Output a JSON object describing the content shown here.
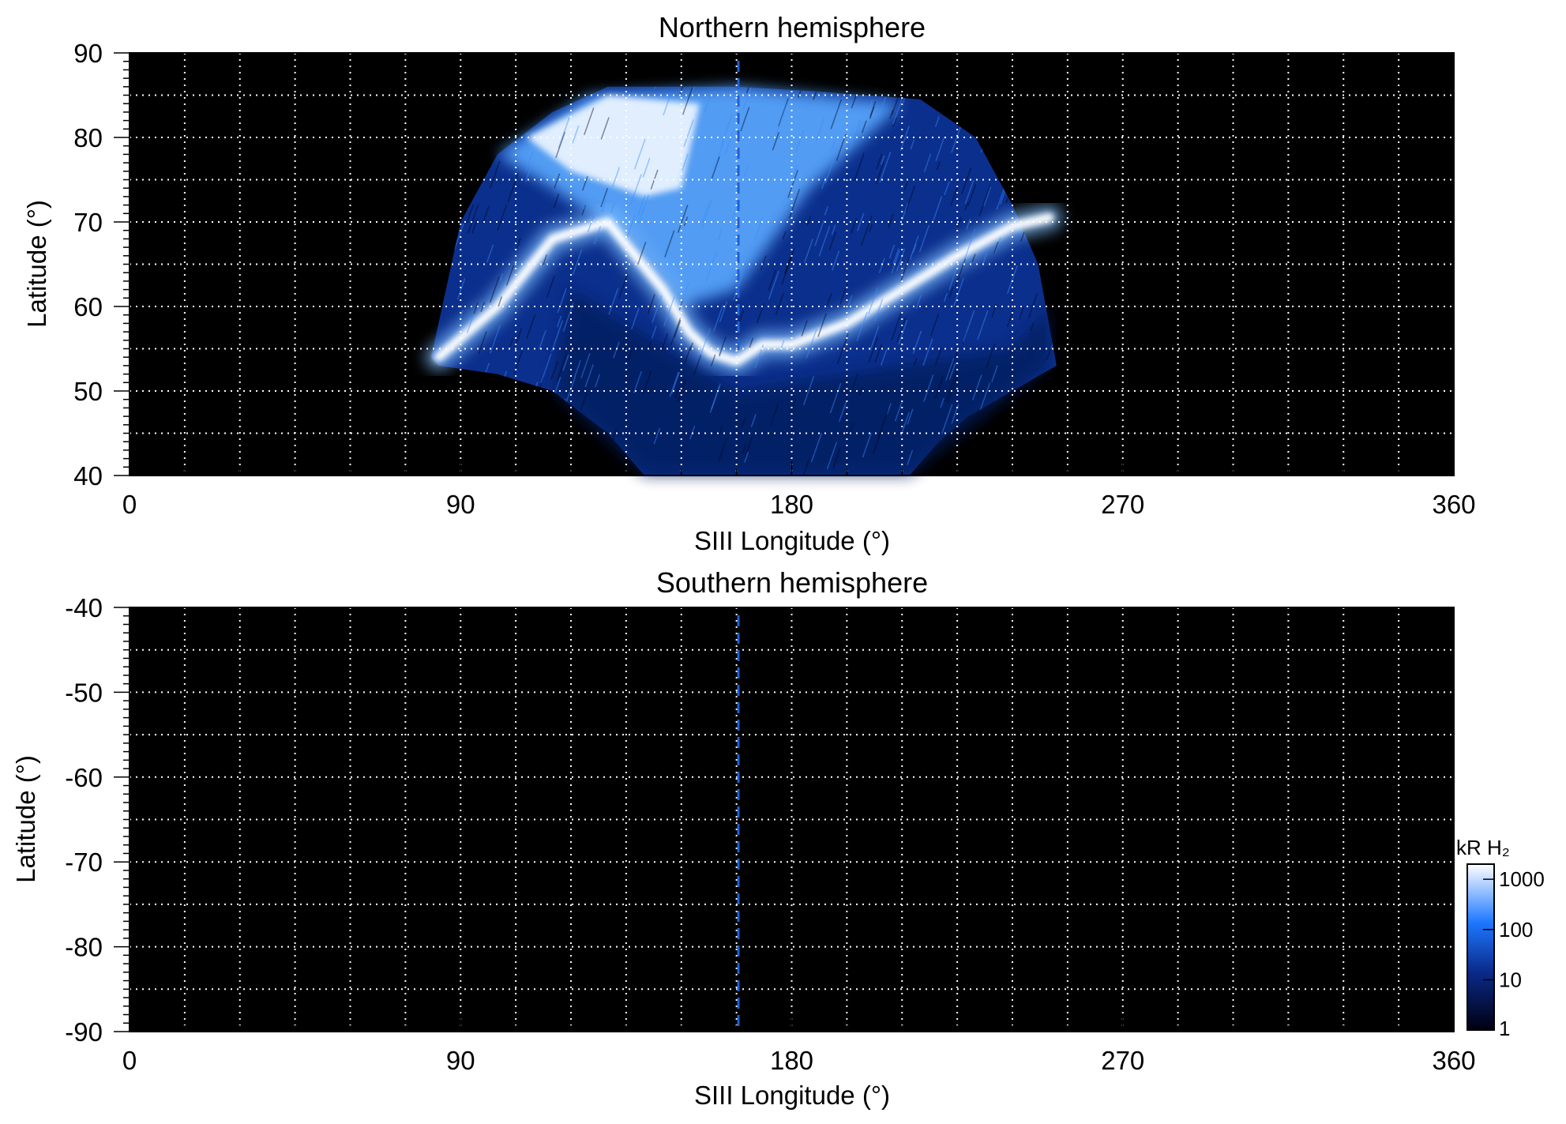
{
  "panels": [
    {
      "title": "Northern hemisphere",
      "xlabel": "SIII Longitude (°)",
      "ylabel": "Latitude (°)",
      "xlim": [
        0,
        360
      ],
      "ylim": [
        40,
        90
      ],
      "xticks": [
        "0",
        "90",
        "180",
        "270",
        "360"
      ],
      "yticks": [
        "90",
        "80",
        "70",
        "60",
        "50",
        "40"
      ]
    },
    {
      "title": "Southern hemisphere",
      "xlabel": "SIII Longitude (°)",
      "ylabel": "Latitude (°)",
      "xlim": [
        0,
        360
      ],
      "ylim": [
        -90,
        -40
      ],
      "xticks": [
        "0",
        "90",
        "180",
        "270",
        "360"
      ],
      "yticks": [
        "-40",
        "-50",
        "-60",
        "-70",
        "-80",
        "-90"
      ]
    }
  ],
  "colorbar": {
    "label": "kR H₂",
    "ticks": [
      "1000",
      "100",
      "10",
      "1"
    ],
    "scale": "log",
    "range": [
      1,
      2000
    ],
    "colors": [
      "#000010",
      "#0a2a8a",
      "#1e78ff",
      "#ffffff"
    ]
  },
  "chart_data": [
    {
      "type": "heatmap",
      "title": "Northern hemisphere",
      "xlabel": "SIII Longitude (°)",
      "ylabel": "Latitude (°)",
      "xlim": [
        0,
        360
      ],
      "ylim": [
        40,
        90
      ],
      "grid": true,
      "reference_longitude": 165,
      "main_oval": {
        "longitude": [
          84,
          100,
          115,
          130,
          145,
          152,
          158,
          165,
          172,
          180,
          195,
          210,
          225,
          240,
          250
        ],
        "latitude": [
          54,
          60,
          68,
          70,
          62,
          57,
          54.5,
          53.5,
          55.5,
          55.5,
          58,
          62,
          66,
          69.5,
          70.5
        ]
      },
      "coverage_edge": {
        "longitude": [
          82,
          90,
          100,
          115,
          130,
          145,
          165,
          185,
          200,
          215,
          230,
          240,
          247,
          252
        ],
        "latitude": [
          54,
          70,
          78,
          83,
          86,
          86,
          86,
          85.5,
          85,
          84.5,
          80,
          72,
          65,
          53
        ]
      }
    },
    {
      "type": "heatmap",
      "title": "Southern hemisphere",
      "xlabel": "SIII Longitude (°)",
      "ylabel": "Latitude (°)",
      "xlim": [
        0,
        360
      ],
      "ylim": [
        -90,
        -40
      ],
      "grid": true,
      "reference_longitude": 165
    }
  ]
}
